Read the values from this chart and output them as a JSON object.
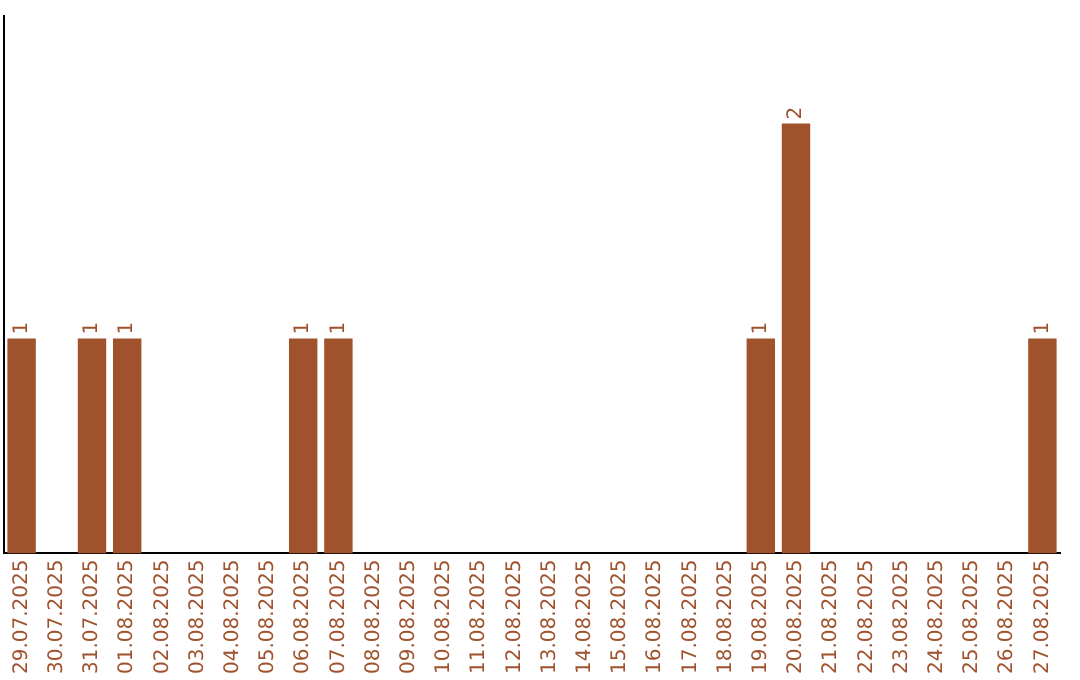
{
  "chart_data": {
    "type": "bar",
    "categories": [
      "29.07.2025",
      "30.07.2025",
      "31.07.2025",
      "01.08.2025",
      "02.08.2025",
      "03.08.2025",
      "04.08.2025",
      "05.08.2025",
      "06.08.2025",
      "07.08.2025",
      "08.08.2025",
      "09.08.2025",
      "10.08.2025",
      "11.08.2025",
      "12.08.2025",
      "13.08.2025",
      "14.08.2025",
      "15.08.2025",
      "16.08.2025",
      "17.08.2025",
      "18.08.2025",
      "19.08.2025",
      "20.08.2025",
      "21.08.2025",
      "22.08.2025",
      "23.08.2025",
      "24.08.2025",
      "25.08.2025",
      "26.08.2025",
      "27.08.2025"
    ],
    "values": [
      1,
      0,
      1,
      1,
      0,
      0,
      0,
      0,
      1,
      1,
      0,
      0,
      0,
      0,
      0,
      0,
      0,
      0,
      0,
      0,
      0,
      1,
      2,
      0,
      0,
      0,
      0,
      0,
      0,
      1
    ],
    "value_labels": [
      "1",
      null,
      "1",
      "1",
      null,
      null,
      null,
      null,
      "1",
      "1",
      null,
      null,
      null,
      null,
      null,
      null,
      null,
      null,
      null,
      null,
      null,
      "1",
      "2",
      null,
      null,
      null,
      null,
      null,
      null,
      "1"
    ],
    "color": "#a0522d",
    "grid": false,
    "legend": false,
    "tick_labels": "x"
  }
}
